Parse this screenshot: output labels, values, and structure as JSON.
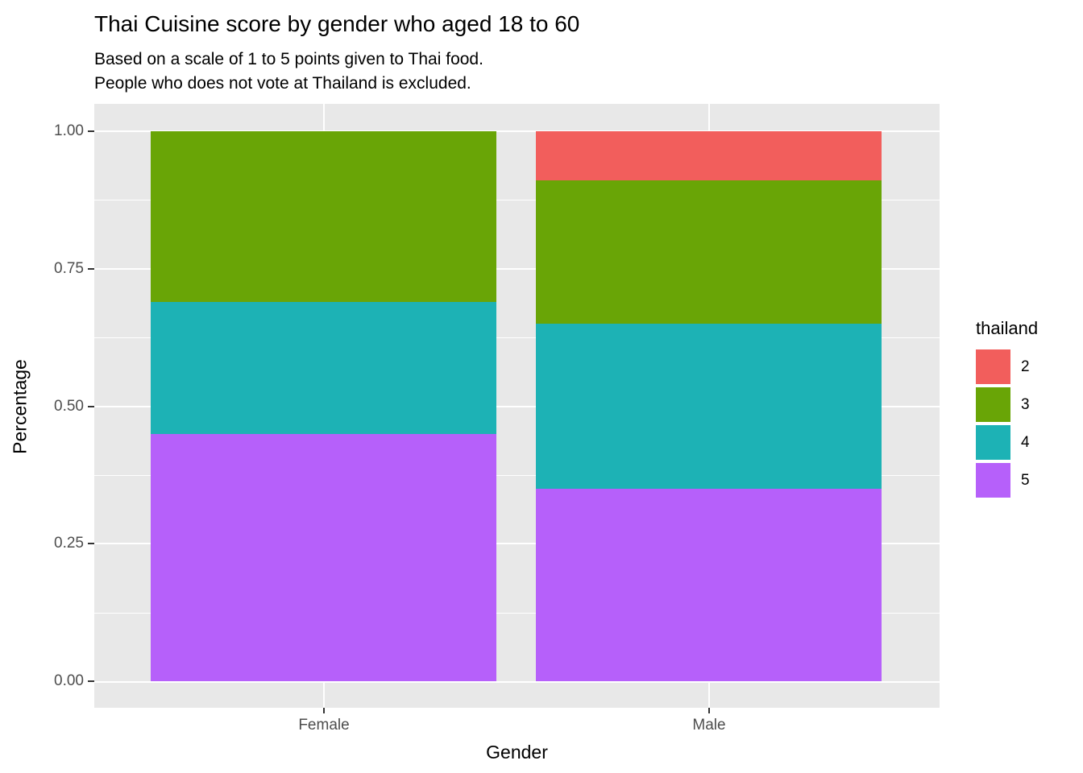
{
  "header": {
    "title": "Thai Cuisine score by gender who aged 18 to 60",
    "subtitle_line1": "Based on a scale of 1 to 5 points given to Thai food.",
    "subtitle_line2": "People who does not vote at Thailand is excluded."
  },
  "chart_data": {
    "type": "bar",
    "variant": "stacked-percentage",
    "title": "Thai Cuisine score by gender who aged 18 to 60",
    "subtitle": "Based on a scale of 1 to 5 points given to Thai food.\nPeople who does not vote at Thailand is excluded.",
    "xlabel": "Gender",
    "ylabel": "Percentage",
    "categories": [
      "Female",
      "Male"
    ],
    "legend_title": "thailand",
    "legend_position": "right",
    "stack_order": "top-to-bottom",
    "series": [
      {
        "name": "2",
        "color": "#F25E5C",
        "values": [
          0.0,
          0.09
        ]
      },
      {
        "name": "3",
        "color": "#69A506",
        "values": [
          0.31,
          0.26
        ]
      },
      {
        "name": "4",
        "color": "#1DB2B5",
        "values": [
          0.24,
          0.3
        ]
      },
      {
        "name": "5",
        "color": "#B660FA",
        "values": [
          0.45,
          0.35
        ]
      }
    ],
    "ylim": [
      0,
      1
    ],
    "y_ticks": [
      {
        "label": "1.00",
        "value": 1.0
      },
      {
        "label": "0.75",
        "value": 0.75
      },
      {
        "label": "0.50",
        "value": 0.5
      },
      {
        "label": "0.25",
        "value": 0.25
      },
      {
        "label": "0.00",
        "value": 0.0
      }
    ],
    "y_minor_gridlines": [
      0.125,
      0.375,
      0.625,
      0.875
    ],
    "grid": true,
    "colors": {
      "panel_bg": "#E8E8E8",
      "gridline": "#FFFFFF",
      "axis_text": "#4D4D4D",
      "tick_mark": "#333333",
      "title_text": "#000000"
    }
  }
}
